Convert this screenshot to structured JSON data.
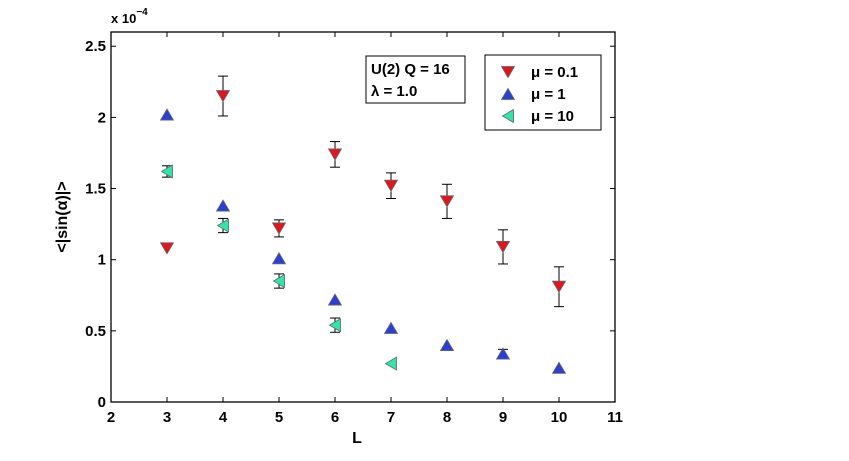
{
  "chart_data": {
    "type": "scatter",
    "title": "",
    "xlabel": "L",
    "ylabel": "<|sin(α)|>",
    "xlim": [
      2,
      11
    ],
    "ylim": [
      0,
      2.6
    ],
    "xticks": [
      2,
      3,
      4,
      5,
      6,
      7,
      8,
      9,
      10,
      11
    ],
    "yticks": [
      0,
      0.5,
      1,
      1.5,
      2,
      2.5
    ],
    "xtick_labels": [
      "2",
      "3",
      "4",
      "5",
      "6",
      "7",
      "8",
      "9",
      "10",
      "11"
    ],
    "ytick_labels": [
      "0",
      "0.5",
      "1",
      "1.5",
      "2",
      "2.5"
    ],
    "y_multiplier": {
      "base": "x 10",
      "exponent": "−4"
    },
    "grid": false,
    "annotation": {
      "line1": "U(2) Q = 16",
      "line2": "λ = 1.0"
    },
    "legend_position": "top-right inside",
    "series": [
      {
        "name": "μ = 0.1",
        "marker": "triangle-down",
        "color": "#e0161c",
        "x": [
          3,
          4,
          5,
          6,
          7,
          8,
          9,
          10
        ],
        "y": [
          1.08,
          2.15,
          1.22,
          1.74,
          1.52,
          1.41,
          1.09,
          0.81
        ],
        "err": [
          0.0,
          0.14,
          0.06,
          0.09,
          0.09,
          0.12,
          0.12,
          0.14
        ]
      },
      {
        "name": "μ = 1",
        "marker": "triangle-up",
        "color": "#2a3fd6",
        "x": [
          3,
          4,
          5,
          6,
          7,
          8,
          9,
          10
        ],
        "y": [
          2.02,
          1.38,
          1.01,
          0.72,
          0.52,
          0.4,
          0.34,
          0.24
        ],
        "err": [
          0.0,
          0.0,
          0.0,
          0.0,
          0.0,
          0.0,
          0.03,
          0.0
        ]
      },
      {
        "name": "μ = 10",
        "marker": "triangle-left",
        "color": "#2ee6a8",
        "x": [
          3,
          4,
          5,
          6,
          7
        ],
        "y": [
          1.62,
          1.24,
          0.85,
          0.54,
          0.27
        ],
        "err": [
          0.04,
          0.05,
          0.05,
          0.05,
          0.0
        ]
      }
    ]
  }
}
